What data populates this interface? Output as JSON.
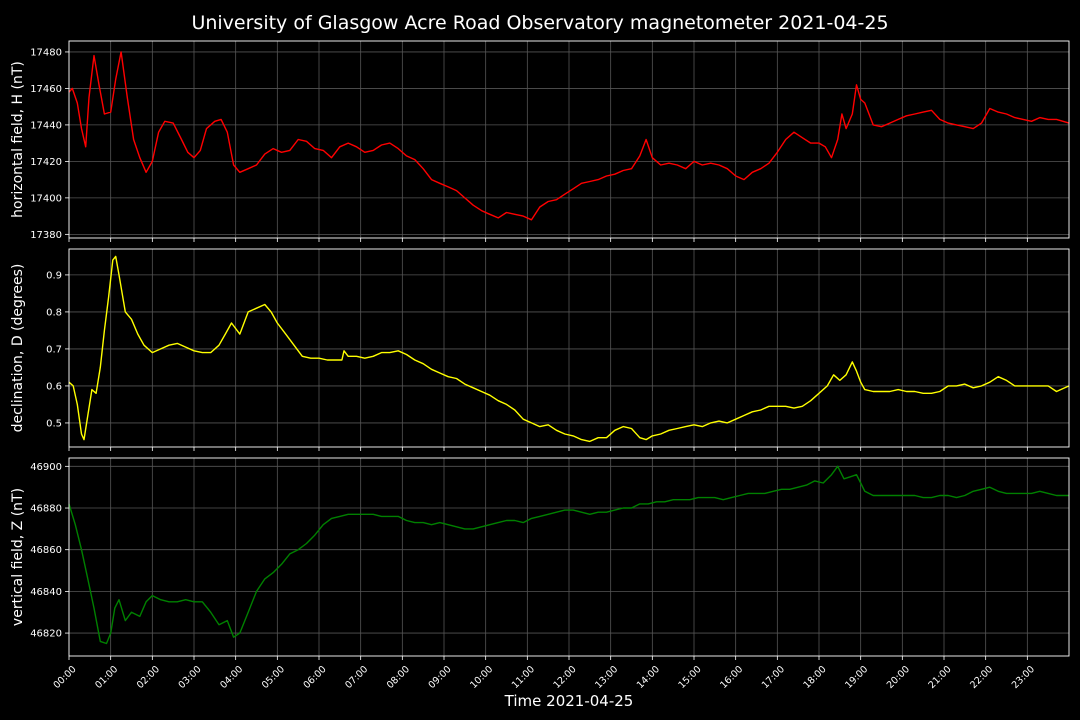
{
  "title": "University of Glasgow Acre Road Observatory magnetometer 2021-04-25",
  "xlabel": "Time 2021-04-25",
  "chart_data": [
    {
      "type": "line",
      "ylabel": "horizontal field, H (nT)",
      "color": "#ff0000",
      "xlim": [
        0,
        24
      ],
      "ylim": [
        17378,
        17486
      ],
      "yticks": [
        17380,
        17400,
        17420,
        17440,
        17460,
        17480
      ],
      "grid": true,
      "x": [
        0.0,
        0.08,
        0.2,
        0.3,
        0.4,
        0.48,
        0.6,
        0.72,
        0.85,
        1.0,
        1.12,
        1.25,
        1.4,
        1.55,
        1.7,
        1.85,
        2.0,
        2.15,
        2.3,
        2.5,
        2.7,
        2.85,
        3.0,
        3.15,
        3.3,
        3.5,
        3.65,
        3.8,
        3.95,
        4.1,
        4.3,
        4.5,
        4.7,
        4.9,
        5.1,
        5.3,
        5.5,
        5.7,
        5.9,
        6.1,
        6.3,
        6.5,
        6.7,
        6.9,
        7.1,
        7.3,
        7.5,
        7.7,
        7.9,
        8.1,
        8.3,
        8.5,
        8.7,
        8.9,
        9.1,
        9.3,
        9.5,
        9.7,
        9.9,
        10.1,
        10.3,
        10.5,
        10.7,
        10.9,
        11.1,
        11.3,
        11.5,
        11.7,
        11.9,
        12.1,
        12.3,
        12.5,
        12.7,
        12.9,
        13.1,
        13.3,
        13.5,
        13.7,
        13.85,
        14.0,
        14.2,
        14.4,
        14.6,
        14.8,
        15.0,
        15.2,
        15.4,
        15.6,
        15.8,
        16.0,
        16.2,
        16.4,
        16.6,
        16.8,
        17.0,
        17.2,
        17.4,
        17.6,
        17.8,
        18.0,
        18.15,
        18.3,
        18.45,
        18.55,
        18.65,
        18.8,
        18.9,
        19.0,
        19.1,
        19.3,
        19.5,
        19.7,
        19.9,
        20.1,
        20.3,
        20.5,
        20.7,
        20.9,
        21.1,
        21.3,
        21.5,
        21.7,
        21.9,
        22.1,
        22.3,
        22.5,
        22.7,
        22.9,
        23.1,
        23.3,
        23.5,
        23.7,
        24.0
      ],
      "values": [
        17458,
        17460,
        17452,
        17438,
        17428,
        17455,
        17478,
        17462,
        17446,
        17447,
        17465,
        17480,
        17455,
        17432,
        17422,
        17414,
        17420,
        17436,
        17442,
        17441,
        17432,
        17425,
        17422,
        17426,
        17438,
        17442,
        17443,
        17436,
        17418,
        17414,
        17416,
        17418,
        17424,
        17427,
        17425,
        17426,
        17432,
        17431,
        17427,
        17426,
        17422,
        17428,
        17430,
        17428,
        17425,
        17426,
        17429,
        17430,
        17427,
        17423,
        17421,
        17416,
        17410,
        17408,
        17406,
        17404,
        17400,
        17396,
        17393,
        17391,
        17389,
        17392,
        17391,
        17390,
        17388,
        17395,
        17398,
        17399,
        17402,
        17405,
        17408,
        17409,
        17410,
        17412,
        17413,
        17415,
        17416,
        17423,
        17432,
        17422,
        17418,
        17419,
        17418,
        17416,
        17420,
        17418,
        17419,
        17418,
        17416,
        17412,
        17410,
        17414,
        17416,
        17419,
        17425,
        17432,
        17436,
        17433,
        17430,
        17430,
        17428,
        17422,
        17432,
        17446,
        17438,
        17446,
        17462,
        17454,
        17452,
        17440,
        17439,
        17441,
        17443,
        17445,
        17446,
        17447,
        17448,
        17443,
        17441,
        17440,
        17439,
        17438,
        17441,
        17449,
        17447,
        17446,
        17444,
        17443,
        17442,
        17444,
        17443,
        17443,
        17441
      ]
    },
    {
      "type": "line",
      "ylabel": "declination, D (degrees)",
      "color": "#ffff00",
      "xlim": [
        0,
        24
      ],
      "ylim": [
        0.435,
        0.97
      ],
      "yticks": [
        0.5,
        0.6,
        0.7,
        0.8,
        0.9
      ],
      "grid": true,
      "x": [
        0.0,
        0.1,
        0.2,
        0.3,
        0.36,
        0.45,
        0.55,
        0.65,
        0.75,
        0.85,
        0.95,
        1.05,
        1.12,
        1.2,
        1.35,
        1.5,
        1.65,
        1.8,
        2.0,
        2.2,
        2.4,
        2.6,
        2.8,
        3.0,
        3.2,
        3.4,
        3.6,
        3.75,
        3.9,
        4.1,
        4.3,
        4.5,
        4.7,
        4.85,
        5.0,
        5.2,
        5.4,
        5.6,
        5.8,
        6.0,
        6.2,
        6.4,
        6.55,
        6.6,
        6.7,
        6.9,
        7.1,
        7.3,
        7.5,
        7.7,
        7.9,
        8.1,
        8.3,
        8.5,
        8.7,
        8.9,
        9.1,
        9.3,
        9.5,
        9.7,
        9.9,
        10.1,
        10.3,
        10.5,
        10.7,
        10.9,
        11.1,
        11.3,
        11.5,
        11.7,
        11.9,
        12.1,
        12.3,
        12.5,
        12.7,
        12.9,
        13.1,
        13.3,
        13.5,
        13.7,
        13.85,
        14.0,
        14.2,
        14.4,
        14.6,
        14.8,
        15.0,
        15.2,
        15.4,
        15.6,
        15.8,
        16.0,
        16.2,
        16.4,
        16.6,
        16.8,
        17.0,
        17.2,
        17.4,
        17.6,
        17.8,
        18.0,
        18.2,
        18.35,
        18.5,
        18.65,
        18.8,
        18.9,
        19.0,
        19.1,
        19.3,
        19.5,
        19.7,
        19.9,
        20.1,
        20.3,
        20.5,
        20.7,
        20.9,
        21.1,
        21.3,
        21.5,
        21.7,
        21.9,
        22.1,
        22.3,
        22.5,
        22.7,
        22.9,
        23.1,
        23.3,
        23.5,
        23.7,
        24.0
      ],
      "values": [
        0.61,
        0.6,
        0.55,
        0.47,
        0.455,
        0.52,
        0.59,
        0.58,
        0.65,
        0.75,
        0.84,
        0.94,
        0.95,
        0.9,
        0.8,
        0.78,
        0.74,
        0.71,
        0.69,
        0.7,
        0.71,
        0.715,
        0.705,
        0.695,
        0.69,
        0.69,
        0.71,
        0.74,
        0.77,
        0.74,
        0.8,
        0.81,
        0.82,
        0.8,
        0.77,
        0.74,
        0.71,
        0.68,
        0.675,
        0.675,
        0.67,
        0.67,
        0.67,
        0.695,
        0.68,
        0.68,
        0.675,
        0.68,
        0.69,
        0.69,
        0.695,
        0.685,
        0.67,
        0.66,
        0.645,
        0.635,
        0.625,
        0.62,
        0.605,
        0.595,
        0.585,
        0.575,
        0.56,
        0.55,
        0.535,
        0.51,
        0.5,
        0.49,
        0.495,
        0.48,
        0.47,
        0.465,
        0.455,
        0.45,
        0.46,
        0.46,
        0.48,
        0.49,
        0.485,
        0.46,
        0.455,
        0.465,
        0.47,
        0.48,
        0.485,
        0.49,
        0.495,
        0.49,
        0.5,
        0.505,
        0.5,
        0.51,
        0.52,
        0.53,
        0.535,
        0.545,
        0.545,
        0.545,
        0.54,
        0.545,
        0.56,
        0.58,
        0.6,
        0.63,
        0.615,
        0.63,
        0.665,
        0.64,
        0.61,
        0.59,
        0.585,
        0.585,
        0.585,
        0.59,
        0.585,
        0.585,
        0.58,
        0.58,
        0.585,
        0.6,
        0.6,
        0.605,
        0.595,
        0.6,
        0.61,
        0.625,
        0.615,
        0.6,
        0.6,
        0.6,
        0.6,
        0.6,
        0.585,
        0.6
      ]
    },
    {
      "type": "line",
      "ylabel": "vertical field, Z (nT)",
      "color": "#008000",
      "xlim": [
        0,
        24
      ],
      "ylim": [
        46809,
        46904
      ],
      "yticks": [
        46820,
        46840,
        46860,
        46880,
        46900
      ],
      "grid": true,
      "x": [
        0.0,
        0.15,
        0.3,
        0.45,
        0.6,
        0.75,
        0.9,
        1.0,
        1.1,
        1.2,
        1.35,
        1.5,
        1.7,
        1.85,
        2.0,
        2.2,
        2.4,
        2.6,
        2.8,
        3.0,
        3.2,
        3.4,
        3.6,
        3.8,
        3.95,
        4.1,
        4.3,
        4.5,
        4.7,
        4.9,
        5.1,
        5.3,
        5.5,
        5.7,
        5.9,
        6.1,
        6.3,
        6.5,
        6.7,
        6.9,
        7.1,
        7.3,
        7.5,
        7.7,
        7.9,
        8.1,
        8.3,
        8.5,
        8.7,
        8.9,
        9.1,
        9.3,
        9.5,
        9.7,
        9.9,
        10.1,
        10.3,
        10.5,
        10.7,
        10.9,
        11.1,
        11.3,
        11.5,
        11.7,
        11.9,
        12.1,
        12.3,
        12.5,
        12.7,
        12.9,
        13.1,
        13.3,
        13.5,
        13.7,
        13.9,
        14.1,
        14.3,
        14.5,
        14.7,
        14.9,
        15.1,
        15.3,
        15.5,
        15.7,
        15.9,
        16.1,
        16.3,
        16.5,
        16.7,
        16.9,
        17.1,
        17.3,
        17.5,
        17.7,
        17.9,
        18.1,
        18.3,
        18.45,
        18.6,
        18.75,
        18.9,
        19.0,
        19.1,
        19.3,
        19.5,
        19.7,
        19.9,
        20.1,
        20.3,
        20.5,
        20.7,
        20.9,
        21.1,
        21.3,
        21.5,
        21.7,
        21.9,
        22.1,
        22.3,
        22.5,
        22.7,
        22.9,
        23.1,
        23.3,
        23.5,
        23.7,
        24.0
      ],
      "values": [
        46882,
        46872,
        46860,
        46846,
        46832,
        46816,
        46815,
        46820,
        46832,
        46836,
        46826,
        46830,
        46828,
        46835,
        46838,
        46836,
        46835,
        46835,
        46836,
        46835,
        46835,
        46830,
        46824,
        46826,
        46818,
        46820,
        46830,
        46840,
        46846,
        46849,
        46853,
        46858,
        46860,
        46863,
        46867,
        46872,
        46875,
        46876,
        46877,
        46877,
        46877,
        46877,
        46876,
        46876,
        46876,
        46874,
        46873,
        46873,
        46872,
        46873,
        46872,
        46871,
        46870,
        46870,
        46871,
        46872,
        46873,
        46874,
        46874,
        46873,
        46875,
        46876,
        46877,
        46878,
        46879,
        46879,
        46878,
        46877,
        46878,
        46878,
        46879,
        46880,
        46880,
        46882,
        46882,
        46883,
        46883,
        46884,
        46884,
        46884,
        46885,
        46885,
        46885,
        46884,
        46885,
        46886,
        46887,
        46887,
        46887,
        46888,
        46889,
        46889,
        46890,
        46891,
        46893,
        46892,
        46896,
        46900,
        46894,
        46895,
        46896,
        46892,
        46888,
        46886,
        46886,
        46886,
        46886,
        46886,
        46886,
        46885,
        46885,
        46886,
        46886,
        46885,
        46886,
        46888,
        46889,
        46890,
        46888,
        46887,
        46887,
        46887,
        46887,
        46888,
        46887,
        46886,
        46886
      ]
    }
  ],
  "x_ticks": [
    "00:00",
    "01:00",
    "02:00",
    "03:00",
    "04:00",
    "05:00",
    "06:00",
    "07:00",
    "08:00",
    "09:00",
    "10:00",
    "11:00",
    "12:00",
    "13:00",
    "14:00",
    "15:00",
    "16:00",
    "17:00",
    "18:00",
    "19:00",
    "20:00",
    "21:00",
    "22:00",
    "23:00"
  ]
}
